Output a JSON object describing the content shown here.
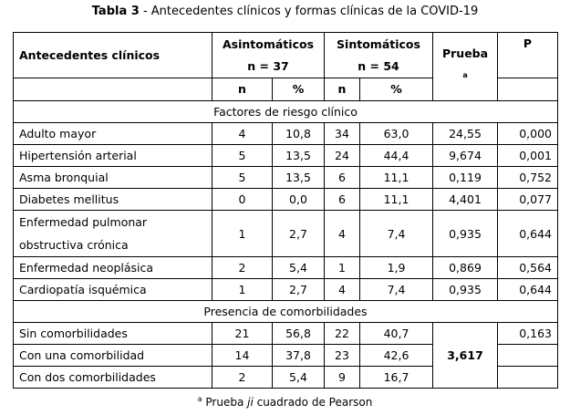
{
  "title": {
    "label": "Tabla 3",
    "text": " - Antecedentes clínicos y formas clínicas de la COVID-19"
  },
  "header": {
    "col1": "Antecedentes clínicos",
    "asint": "Asintomáticos",
    "asint_n": "n = 37",
    "sint": "Sintomáticos",
    "sint_n": "n = 54",
    "prueba": "Prueba",
    "prueba_sup": "a",
    "p": "P",
    "n": "n",
    "pct": "%"
  },
  "sections": [
    {
      "title": "Factores de riesgo clínico",
      "rows": [
        [
          "Adulto mayor",
          "4",
          "10,8",
          "34",
          "63,0",
          "24,55",
          "0,000"
        ],
        [
          "Hipertensión arterial",
          "5",
          "13,5",
          "24",
          "44,4",
          "9,674",
          "0,001"
        ],
        [
          "Asma bronquial",
          "5",
          "13,5",
          "6",
          "11,1",
          "0,119",
          "0,752"
        ],
        [
          "Diabetes mellitus",
          "0",
          "0,0",
          "6",
          "11,1",
          "4,401",
          "0,077"
        ],
        [
          "Enfermedad pulmonar obstructiva crónica",
          "1",
          "2,7",
          "4",
          "7,4",
          "0,935",
          "0,644"
        ],
        [
          "Enfermedad neoplásica",
          "2",
          "5,4",
          "1",
          "1,9",
          "0,869",
          "0,564"
        ],
        [
          "Cardiopatía isquémica",
          "1",
          "2,7",
          "4",
          "7,4",
          "0,935",
          "0,644"
        ]
      ]
    },
    {
      "title": "Presencia de comorbilidades",
      "rows": [
        [
          "Sin comorbilidades",
          "21",
          "56,8",
          "22",
          "40,7",
          "3,617",
          "0,163"
        ],
        [
          "Con una comorbilidad",
          "14",
          "37,8",
          "23",
          "42,6",
          "",
          ""
        ],
        [
          "Con dos comorbilidades",
          "2",
          "5,4",
          "9",
          "16,7",
          "",
          ""
        ]
      ]
    }
  ],
  "footnote": {
    "sup": "a",
    "pre": " Prueba ",
    "italic": "ji",
    "post": " cuadrado de Pearson"
  }
}
